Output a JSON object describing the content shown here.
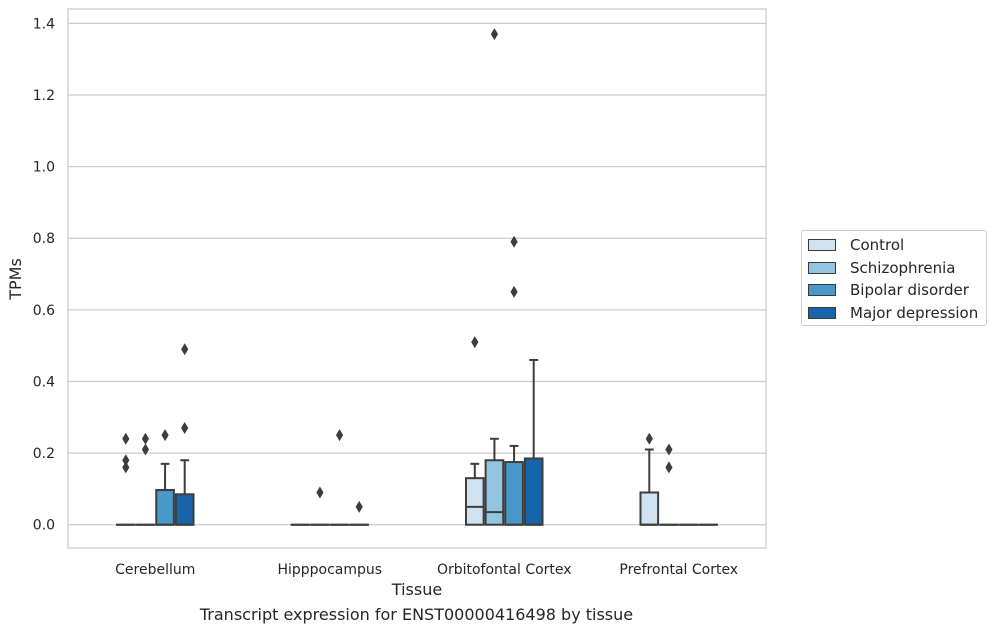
{
  "chart_data": {
    "type": "box",
    "xlabel": "Tissue",
    "ylabel": "TPMs",
    "caption": "Transcript expression for ENST00000416498 by tissue",
    "ylim": [
      -0.065,
      1.44
    ],
    "yticks": [
      0.0,
      0.2,
      0.4,
      0.6,
      0.8,
      1.0,
      1.2,
      1.4
    ],
    "ytick_labels": [
      "0.0",
      "0.2",
      "0.4",
      "0.6",
      "0.8",
      "1.0",
      "1.2",
      "1.4"
    ],
    "categories": [
      "Cerebellum",
      "Hipppocampus",
      "Orbitofontal Cortex",
      "Prefrontal Cortex"
    ],
    "legend_position": "right",
    "grid": "horizontal",
    "series": [
      {
        "name": "Control",
        "color": "#d0e1f2",
        "boxes": [
          {
            "q1": 0,
            "median": 0,
            "q3": 0,
            "whisker_low": 0,
            "whisker_high": 0,
            "outliers": [
              0.16,
              0.18,
              0.24
            ]
          },
          {
            "q1": 0,
            "median": 0,
            "q3": 0,
            "whisker_low": 0,
            "whisker_high": 0,
            "outliers": []
          },
          {
            "q1": 0,
            "median": 0.05,
            "q3": 0.13,
            "whisker_low": 0,
            "whisker_high": 0.17,
            "outliers": [
              0.51
            ]
          },
          {
            "q1": 0,
            "median": 0,
            "q3": 0.09,
            "whisker_low": 0,
            "whisker_high": 0.21,
            "outliers": [
              0.24
            ]
          }
        ]
      },
      {
        "name": "Schizophrenia",
        "color": "#94c4df",
        "boxes": [
          {
            "q1": 0,
            "median": 0,
            "q3": 0,
            "whisker_low": 0,
            "whisker_high": 0,
            "outliers": [
              0.21,
              0.24
            ]
          },
          {
            "q1": 0,
            "median": 0,
            "q3": 0,
            "whisker_low": 0,
            "whisker_high": 0,
            "outliers": [
              0.09
            ]
          },
          {
            "q1": 0,
            "median": 0.035,
            "q3": 0.18,
            "whisker_low": 0,
            "whisker_high": 0.24,
            "outliers": [
              1.37
            ]
          },
          {
            "q1": 0,
            "median": 0,
            "q3": 0,
            "whisker_low": 0,
            "whisker_high": 0,
            "outliers": [
              0.16,
              0.21
            ]
          }
        ]
      },
      {
        "name": "Bipolar disorder",
        "color": "#4a98c9",
        "boxes": [
          {
            "q1": 0,
            "median": 0,
            "q3": 0.097,
            "whisker_low": 0,
            "whisker_high": 0.17,
            "outliers": [
              0.25
            ]
          },
          {
            "q1": 0,
            "median": 0,
            "q3": 0,
            "whisker_low": 0,
            "whisker_high": 0,
            "outliers": [
              0.25
            ]
          },
          {
            "q1": 0,
            "median": 0,
            "q3": 0.175,
            "whisker_low": 0,
            "whisker_high": 0.22,
            "outliers": [
              0.65,
              0.79
            ]
          },
          {
            "q1": 0,
            "median": 0,
            "q3": 0,
            "whisker_low": 0,
            "whisker_high": 0,
            "outliers": []
          }
        ]
      },
      {
        "name": "Major depression",
        "color": "#1764ab",
        "boxes": [
          {
            "q1": 0,
            "median": 0,
            "q3": 0.085,
            "whisker_low": 0,
            "whisker_high": 0.18,
            "outliers": [
              0.27,
              0.49
            ]
          },
          {
            "q1": 0,
            "median": 0,
            "q3": 0,
            "whisker_low": 0,
            "whisker_high": 0,
            "outliers": [
              0.05
            ]
          },
          {
            "q1": 0,
            "median": 0,
            "q3": 0.185,
            "whisker_low": 0,
            "whisker_high": 0.46,
            "outliers": []
          },
          {
            "q1": 0,
            "median": 0,
            "q3": 0,
            "whisker_low": 0,
            "whisker_high": 0,
            "outliers": []
          }
        ]
      }
    ]
  }
}
